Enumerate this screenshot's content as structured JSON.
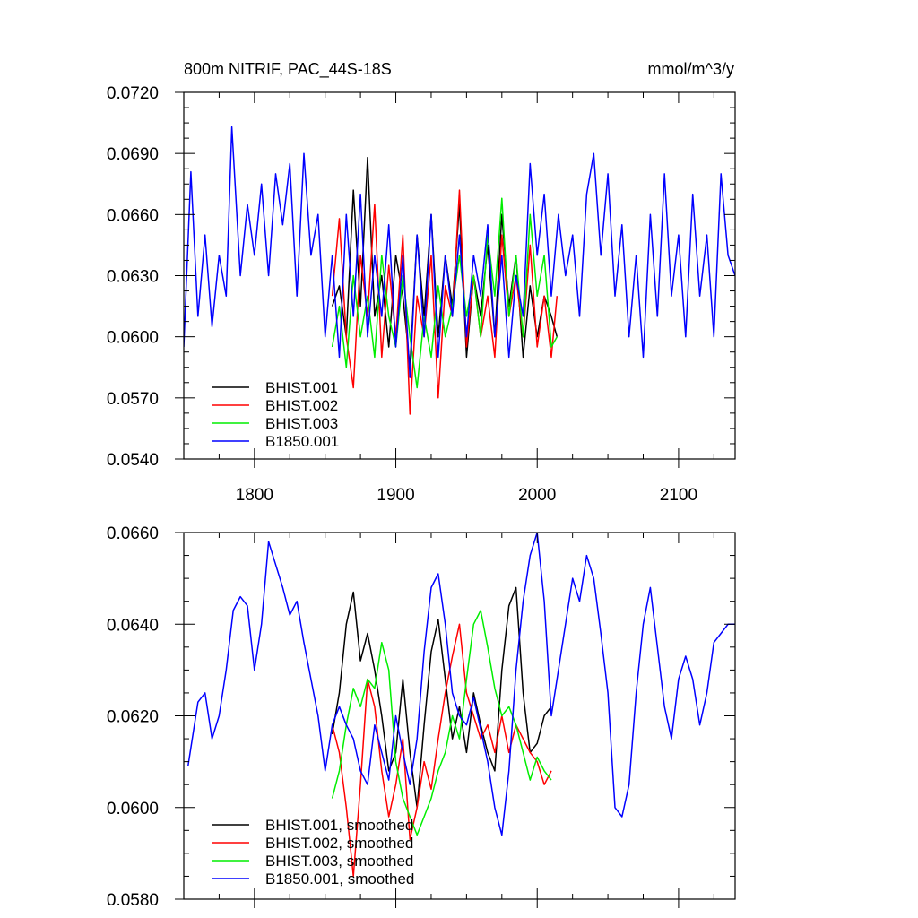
{
  "chart_data": [
    {
      "type": "line",
      "title": "800m NITRIF, PAC_44S-18S",
      "units": "mmol/m^3/y",
      "xlim": [
        1750,
        2140
      ],
      "ylim": [
        0.054,
        0.072
      ],
      "xticks": [
        1800,
        1900,
        2000,
        2100
      ],
      "yticks": [
        0.054,
        0.057,
        0.06,
        0.063,
        0.066,
        0.069,
        0.072
      ],
      "ytick_labels": [
        "0.0540",
        "0.0570",
        "0.0600",
        "0.0630",
        "0.0660",
        "0.0690",
        "0.0720"
      ],
      "legend_position": "bottom-left",
      "series": [
        {
          "name": "BHIST.001",
          "color": "#000000",
          "x": [
            1855,
            1860,
            1865,
            1870,
            1875,
            1880,
            1885,
            1890,
            1895,
            1900,
            1905,
            1910,
            1915,
            1920,
            1925,
            1930,
            1935,
            1940,
            1945,
            1950,
            1955,
            1960,
            1965,
            1970,
            1975,
            1980,
            1985,
            1990,
            1995,
            2000,
            2005,
            2010,
            2014
          ],
          "y": [
            0.0615,
            0.0625,
            0.06,
            0.0672,
            0.0615,
            0.0688,
            0.061,
            0.063,
            0.0595,
            0.064,
            0.062,
            0.0585,
            0.065,
            0.061,
            0.066,
            0.06,
            0.064,
            0.0615,
            0.0665,
            0.059,
            0.063,
            0.061,
            0.0645,
            0.06,
            0.066,
            0.0615,
            0.064,
            0.059,
            0.0625,
            0.06,
            0.062,
            0.061,
            0.06
          ]
        },
        {
          "name": "BHIST.002",
          "color": "#ff0000",
          "x": [
            1855,
            1860,
            1865,
            1870,
            1875,
            1880,
            1885,
            1890,
            1895,
            1900,
            1905,
            1910,
            1915,
            1920,
            1925,
            1930,
            1935,
            1940,
            1945,
            1950,
            1955,
            1960,
            1965,
            1970,
            1975,
            1980,
            1985,
            1990,
            1995,
            2000,
            2005,
            2010,
            2014
          ],
          "y": [
            0.062,
            0.0658,
            0.06,
            0.0575,
            0.064,
            0.061,
            0.0665,
            0.059,
            0.0635,
            0.06,
            0.065,
            0.0562,
            0.062,
            0.06,
            0.064,
            0.057,
            0.0625,
            0.061,
            0.0672,
            0.0595,
            0.063,
            0.06,
            0.062,
            0.059,
            0.065,
            0.061,
            0.063,
            0.06,
            0.0645,
            0.0595,
            0.062,
            0.059,
            0.062
          ]
        },
        {
          "name": "BHIST.003",
          "color": "#00ee00",
          "x": [
            1855,
            1860,
            1865,
            1870,
            1875,
            1880,
            1885,
            1890,
            1895,
            1900,
            1905,
            1910,
            1915,
            1920,
            1925,
            1930,
            1935,
            1940,
            1945,
            1950,
            1955,
            1960,
            1965,
            1970,
            1975,
            1980,
            1985,
            1990,
            1995,
            2000,
            2005,
            2010,
            2014
          ],
          "y": [
            0.0595,
            0.0615,
            0.0585,
            0.063,
            0.06,
            0.062,
            0.059,
            0.064,
            0.061,
            0.0595,
            0.063,
            0.06,
            0.0575,
            0.061,
            0.059,
            0.0625,
            0.06,
            0.0615,
            0.064,
            0.061,
            0.063,
            0.06,
            0.065,
            0.062,
            0.0668,
            0.061,
            0.064,
            0.06,
            0.066,
            0.062,
            0.064,
            0.0595,
            0.06
          ]
        },
        {
          "name": "B1850.001",
          "color": "#0000ff",
          "x": [
            1750,
            1755,
            1760,
            1765,
            1770,
            1775,
            1780,
            1784,
            1790,
            1795,
            1800,
            1805,
            1810,
            1815,
            1820,
            1825,
            1830,
            1835,
            1840,
            1845,
            1850,
            1855,
            1860,
            1865,
            1870,
            1875,
            1880,
            1885,
            1890,
            1895,
            1900,
            1905,
            1910,
            1915,
            1920,
            1925,
            1930,
            1935,
            1940,
            1945,
            1950,
            1955,
            1960,
            1965,
            1970,
            1975,
            1980,
            1985,
            1990,
            1995,
            2000,
            2005,
            2010,
            2015,
            2020,
            2025,
            2030,
            2035,
            2040,
            2045,
            2050,
            2055,
            2060,
            2065,
            2070,
            2075,
            2080,
            2085,
            2090,
            2095,
            2100,
            2105,
            2110,
            2115,
            2120,
            2125,
            2130,
            2135,
            2140
          ],
          "y": [
            0.0595,
            0.0681,
            0.061,
            0.065,
            0.0605,
            0.064,
            0.062,
            0.0703,
            0.063,
            0.0665,
            0.064,
            0.0675,
            0.063,
            0.068,
            0.0655,
            0.0685,
            0.062,
            0.069,
            0.064,
            0.066,
            0.06,
            0.064,
            0.059,
            0.066,
            0.061,
            0.067,
            0.06,
            0.064,
            0.061,
            0.0655,
            0.0595,
            0.064,
            0.058,
            0.065,
            0.06,
            0.066,
            0.059,
            0.064,
            0.061,
            0.065,
            0.06,
            0.064,
            0.062,
            0.0655,
            0.06,
            0.064,
            0.059,
            0.063,
            0.061,
            0.0685,
            0.064,
            0.067,
            0.062,
            0.066,
            0.063,
            0.065,
            0.061,
            0.067,
            0.069,
            0.064,
            0.068,
            0.062,
            0.0655,
            0.06,
            0.064,
            0.059,
            0.066,
            0.061,
            0.068,
            0.062,
            0.065,
            0.06,
            0.067,
            0.062,
            0.065,
            0.06,
            0.068,
            0.064,
            0.063
          ]
        }
      ]
    },
    {
      "type": "line",
      "xlim": [
        1750,
        2140
      ],
      "ylim": [
        0.058,
        0.066
      ],
      "yticks": [
        0.058,
        0.06,
        0.062,
        0.064,
        0.066
      ],
      "ytick_labels": [
        "0.0580",
        "0.0600",
        "0.0620",
        "0.0640",
        "0.0660"
      ],
      "legend_position": "bottom-left",
      "series": [
        {
          "name": "BHIST.001, smoothed",
          "color": "#000000",
          "x": [
            1855,
            1860,
            1865,
            1870,
            1875,
            1880,
            1885,
            1890,
            1895,
            1900,
            1905,
            1910,
            1915,
            1920,
            1925,
            1930,
            1935,
            1940,
            1945,
            1950,
            1955,
            1960,
            1965,
            1970,
            1975,
            1980,
            1985,
            1990,
            1995,
            2000,
            2005,
            2010
          ],
          "y": [
            0.0616,
            0.0625,
            0.064,
            0.0647,
            0.0632,
            0.0638,
            0.063,
            0.062,
            0.0608,
            0.0612,
            0.0628,
            0.0612,
            0.06,
            0.0618,
            0.0634,
            0.0641,
            0.0628,
            0.0615,
            0.0622,
            0.0612,
            0.0625,
            0.0618,
            0.0612,
            0.0608,
            0.063,
            0.0644,
            0.0648,
            0.0625,
            0.0612,
            0.0614,
            0.062,
            0.0622
          ]
        },
        {
          "name": "BHIST.002, smoothed",
          "color": "#ff0000",
          "x": [
            1855,
            1860,
            1865,
            1870,
            1875,
            1880,
            1885,
            1890,
            1895,
            1900,
            1905,
            1910,
            1915,
            1920,
            1925,
            1930,
            1935,
            1940,
            1945,
            1950,
            1955,
            1960,
            1965,
            1970,
            1975,
            1980,
            1985,
            1990,
            1995,
            2000,
            2005,
            2010
          ],
          "y": [
            0.0618,
            0.0612,
            0.06,
            0.0585,
            0.0605,
            0.0628,
            0.0622,
            0.0608,
            0.0598,
            0.0605,
            0.0615,
            0.0593,
            0.06,
            0.061,
            0.0604,
            0.0615,
            0.0625,
            0.0633,
            0.064,
            0.0625,
            0.062,
            0.0615,
            0.0618,
            0.0612,
            0.062,
            0.0612,
            0.0618,
            0.0615,
            0.0612,
            0.061,
            0.0605,
            0.0608
          ]
        },
        {
          "name": "BHIST.003, smoothed",
          "color": "#00ee00",
          "x": [
            1855,
            1860,
            1865,
            1870,
            1875,
            1880,
            1885,
            1890,
            1895,
            1900,
            1905,
            1910,
            1915,
            1920,
            1925,
            1930,
            1935,
            1940,
            1945,
            1950,
            1955,
            1960,
            1965,
            1970,
            1975,
            1980,
            1985,
            1990,
            1995,
            2000,
            2005,
            2010
          ],
          "y": [
            0.0602,
            0.0608,
            0.0618,
            0.0626,
            0.0622,
            0.0628,
            0.0626,
            0.0636,
            0.063,
            0.061,
            0.0602,
            0.0598,
            0.0594,
            0.0598,
            0.0602,
            0.0608,
            0.0612,
            0.062,
            0.0615,
            0.0628,
            0.064,
            0.0643,
            0.0635,
            0.0626,
            0.062,
            0.0622,
            0.0618,
            0.0612,
            0.0606,
            0.0611,
            0.0608,
            0.0606
          ]
        },
        {
          "name": "B1850.001, smoothed",
          "color": "#0000ff",
          "x": [
            1753,
            1760,
            1765,
            1770,
            1775,
            1780,
            1785,
            1790,
            1795,
            1800,
            1805,
            1810,
            1815,
            1820,
            1825,
            1830,
            1835,
            1840,
            1845,
            1850,
            1855,
            1860,
            1865,
            1870,
            1875,
            1880,
            1885,
            1890,
            1895,
            1900,
            1905,
            1910,
            1915,
            1920,
            1925,
            1930,
            1935,
            1940,
            1945,
            1950,
            1955,
            1960,
            1965,
            1970,
            1975,
            1980,
            1985,
            1990,
            1995,
            2000,
            2005,
            2010,
            2015,
            2020,
            2025,
            2030,
            2035,
            2040,
            2045,
            2050,
            2055,
            2060,
            2065,
            2070,
            2075,
            2080,
            2085,
            2090,
            2095,
            2100,
            2105,
            2110,
            2115,
            2120,
            2125,
            2130,
            2135,
            2140
          ],
          "y": [
            0.0609,
            0.0623,
            0.0625,
            0.0615,
            0.062,
            0.063,
            0.0643,
            0.0646,
            0.0644,
            0.063,
            0.064,
            0.0658,
            0.0653,
            0.0648,
            0.0642,
            0.0645,
            0.0636,
            0.0628,
            0.062,
            0.0608,
            0.0618,
            0.0622,
            0.0618,
            0.0615,
            0.0608,
            0.0605,
            0.0618,
            0.0612,
            0.0606,
            0.062,
            0.0612,
            0.0605,
            0.0615,
            0.0634,
            0.0648,
            0.0651,
            0.064,
            0.0625,
            0.062,
            0.0618,
            0.0624,
            0.0617,
            0.061,
            0.06,
            0.0594,
            0.0608,
            0.063,
            0.0645,
            0.0655,
            0.066,
            0.0645,
            0.062,
            0.063,
            0.064,
            0.065,
            0.0645,
            0.0655,
            0.065,
            0.0638,
            0.0625,
            0.06,
            0.0598,
            0.0605,
            0.0625,
            0.064,
            0.0648,
            0.0635,
            0.0622,
            0.0615,
            0.0628,
            0.0633,
            0.0628,
            0.0618,
            0.0625,
            0.0636,
            0.0638,
            0.064,
            0.064
          ]
        }
      ]
    }
  ]
}
